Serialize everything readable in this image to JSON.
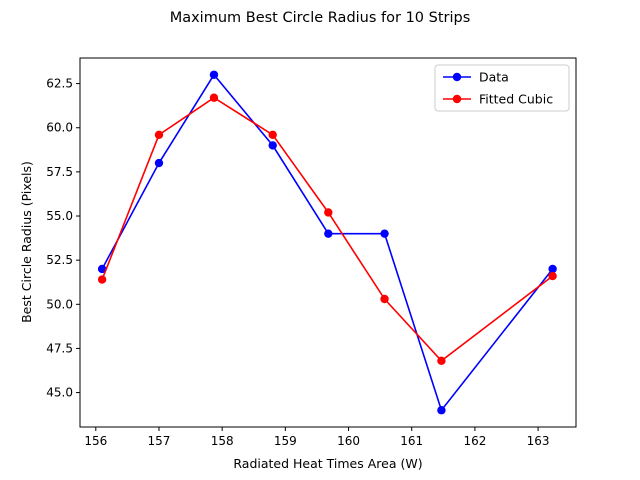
{
  "chart_data": {
    "type": "line",
    "title": "Maximum Best Circle Radius for 10 Strips",
    "xlabel": "Radiated Heat Times Area (W)",
    "ylabel": "Best Circle Radius (Pixels)",
    "xlim": [
      155.75,
      163.6
    ],
    "ylim": [
      43.05,
      63.95
    ],
    "xticks": [
      156,
      157,
      158,
      159,
      160,
      161,
      162,
      163
    ],
    "xtick_labels": [
      "156",
      "157",
      "158",
      "159",
      "160",
      "161",
      "162",
      "163"
    ],
    "yticks": [
      45.0,
      47.5,
      50.0,
      52.5,
      55.0,
      57.5,
      60.0,
      62.5
    ],
    "ytick_labels": [
      "45.0",
      "47.5",
      "50.0",
      "52.5",
      "55.0",
      "57.5",
      "60.0",
      "62.5"
    ],
    "grid": false,
    "legend_position": "top-right",
    "series": [
      {
        "name": "Data",
        "color": "#0000ff",
        "marker": "circle",
        "x": [
          156.1,
          157.0,
          157.87,
          158.8,
          159.68,
          160.57,
          161.47,
          163.23
        ],
        "y": [
          52.0,
          58.0,
          63.0,
          59.0,
          54.0,
          54.0,
          44.0,
          52.0
        ]
      },
      {
        "name": "Fitted Cubic",
        "color": "#ff0000",
        "marker": "circle",
        "x": [
          156.1,
          157.0,
          157.87,
          158.8,
          159.68,
          160.57,
          161.47,
          163.23
        ],
        "y": [
          51.4,
          59.6,
          61.7,
          59.6,
          55.2,
          50.3,
          46.8,
          51.6
        ]
      }
    ]
  }
}
